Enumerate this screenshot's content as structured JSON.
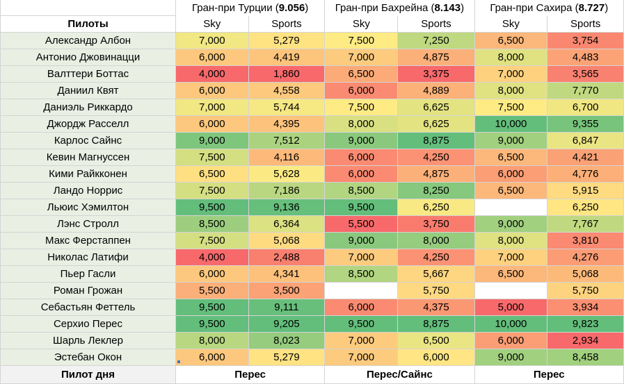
{
  "header": {
    "pilots_label": "Пилоты",
    "races": [
      {
        "name": "Гран-при Турции",
        "score": "9.056"
      },
      {
        "name": "Гран-при Бахрейна",
        "score": "8.143"
      },
      {
        "name": "Гран-при Сахира",
        "score": "8.727"
      }
    ],
    "sky_label": "Sky",
    "sports_label": "Sports"
  },
  "rows": [
    {
      "pilot": "Александр Албон",
      "values": [
        "7,000",
        "5,279",
        "7,500",
        "7,250",
        "6,500",
        "3,754"
      ]
    },
    {
      "pilot": "Антонио Джовинацци",
      "values": [
        "6,000",
        "4,419",
        "7,000",
        "4,875",
        "8,000",
        "4,483"
      ]
    },
    {
      "pilot": "Валттери Боттас",
      "values": [
        "4,000",
        "1,860",
        "6,500",
        "3,375",
        "7,000",
        "3,565"
      ]
    },
    {
      "pilot": "Даниил Квят",
      "values": [
        "6,000",
        "4,558",
        "6,000",
        "4,889",
        "8,000",
        "7,770"
      ]
    },
    {
      "pilot": "Даниэль Риккардо",
      "values": [
        "7,000",
        "5,744",
        "7,500",
        "6,625",
        "7,500",
        "6,700"
      ]
    },
    {
      "pilot": "Джордж Расселл",
      "values": [
        "6,000",
        "4,395",
        "8,000",
        "6,625",
        "10,000",
        "9,355"
      ]
    },
    {
      "pilot": "Карлос Сайнс",
      "values": [
        "9,000",
        "7,512",
        "9,000",
        "8,875",
        "9,000",
        "6,847"
      ]
    },
    {
      "pilot": "Кевин Магнуссен",
      "values": [
        "7,500",
        "4,116",
        "6,000",
        "4,250",
        "6,500",
        "4,421"
      ]
    },
    {
      "pilot": "Кими Райкконен",
      "values": [
        "6,500",
        "5,628",
        "6,000",
        "4,875",
        "6,000",
        "4,776"
      ]
    },
    {
      "pilot": "Ландо Норрис",
      "values": [
        "7,500",
        "7,186",
        "8,500",
        "8,250",
        "6,500",
        "5,915"
      ]
    },
    {
      "pilot": "Льюис Хэмилтон",
      "values": [
        "9,500",
        "9,136",
        "9,500",
        "6,250",
        "",
        "6,250"
      ]
    },
    {
      "pilot": "Лэнс Стролл",
      "values": [
        "8,500",
        "6,364",
        "5,500",
        "3,750",
        "9,000",
        "7,767"
      ]
    },
    {
      "pilot": "Макс Ферстаппен",
      "values": [
        "7,500",
        "5,068",
        "9,000",
        "8,000",
        "8,000",
        "3,810"
      ]
    },
    {
      "pilot": "Николас Латифи",
      "values": [
        "4,000",
        "2,488",
        "7,000",
        "4,250",
        "7,000",
        "4,276"
      ]
    },
    {
      "pilot": "Пьер Гасли",
      "values": [
        "6,000",
        "4,341",
        "8,500",
        "5,667",
        "6,500",
        "5,068"
      ]
    },
    {
      "pilot": "Роман Грожан",
      "values": [
        "5,500",
        "3,500",
        "",
        "5,750",
        "",
        "5,750"
      ]
    },
    {
      "pilot": "Себастьян Феттель",
      "values": [
        "9,500",
        "9,111",
        "6,000",
        "4,375",
        "5,000",
        "3,934"
      ]
    },
    {
      "pilot": "Серхио Перес",
      "values": [
        "9,500",
        "9,205",
        "9,500",
        "8,875",
        "10,000",
        "9,823"
      ]
    },
    {
      "pilot": "Шарль Леклер",
      "values": [
        "8,000",
        "8,023",
        "7,000",
        "6,500",
        "6,000",
        "2,934"
      ]
    },
    {
      "pilot": "Эстебан Окон",
      "values": [
        "6,000",
        "5,279",
        "7,000",
        "6,000",
        "9,000",
        "8,458"
      ]
    }
  ],
  "footer": {
    "label": "Пилот дня",
    "winners": [
      "Перес",
      "Перес/Сайнс",
      "Перес"
    ]
  },
  "colors": {
    "scale_low": "#f8696b",
    "scale_mid": "#ffeb84",
    "scale_high": "#63be7b",
    "pilot_cell_bg": "#e9efe3"
  }
}
